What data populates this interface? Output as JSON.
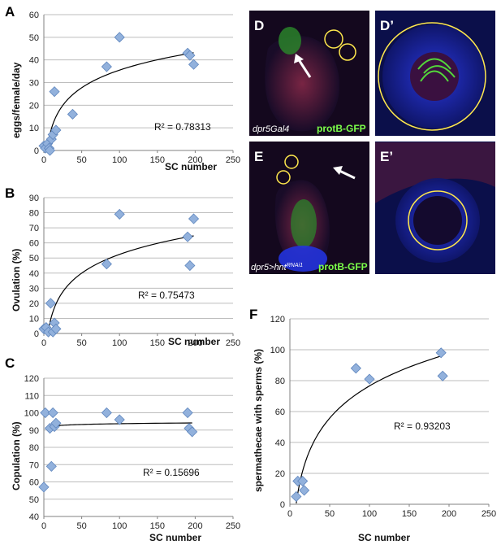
{
  "chart_data": [
    {
      "panel": "A",
      "type": "scatter",
      "xlabel": "SC number",
      "ylabel": "eggs/female/day",
      "xlim": [
        0,
        250
      ],
      "ylim": [
        0,
        60
      ],
      "xticks": [
        0,
        50,
        100,
        150,
        200,
        250
      ],
      "yticks": [
        0,
        10,
        20,
        30,
        40,
        50,
        60
      ],
      "points": [
        [
          0,
          2
        ],
        [
          2,
          1
        ],
        [
          5,
          3
        ],
        [
          7,
          1
        ],
        [
          8,
          0
        ],
        [
          10,
          5
        ],
        [
          12,
          7
        ],
        [
          14,
          26
        ],
        [
          16,
          9
        ],
        [
          38,
          16
        ],
        [
          83,
          37
        ],
        [
          100,
          50
        ],
        [
          190,
          43
        ],
        [
          193,
          42
        ],
        [
          198,
          38
        ]
      ],
      "trendline": "log",
      "r2": "R² = 0.78313"
    },
    {
      "panel": "B",
      "type": "scatter",
      "xlabel": "SC number",
      "ylabel": "Ovulation (%)",
      "xlim": [
        0,
        250
      ],
      "ylim": [
        0,
        90
      ],
      "xticks": [
        0,
        50,
        100,
        150,
        200,
        250
      ],
      "yticks": [
        0,
        10,
        20,
        30,
        40,
        50,
        60,
        70,
        80,
        90
      ],
      "points": [
        [
          0,
          3
        ],
        [
          3,
          4
        ],
        [
          6,
          1
        ],
        [
          9,
          20
        ],
        [
          12,
          1
        ],
        [
          14,
          7
        ],
        [
          16,
          3
        ],
        [
          83,
          46
        ],
        [
          100,
          79
        ],
        [
          190,
          64
        ],
        [
          193,
          45
        ],
        [
          198,
          76
        ]
      ],
      "trendline": "log",
      "r2": "R² = 0.75473"
    },
    {
      "panel": "C",
      "type": "scatter",
      "xlabel": "SC number",
      "ylabel": "Copulation (%)",
      "xlim": [
        0,
        250
      ],
      "ylim": [
        40,
        120
      ],
      "xticks": [
        0,
        50,
        100,
        150,
        200,
        250
      ],
      "yticks": [
        40,
        50,
        60,
        70,
        80,
        90,
        100,
        110,
        120
      ],
      "points": [
        [
          0,
          57
        ],
        [
          2,
          100
        ],
        [
          8,
          91
        ],
        [
          10,
          69
        ],
        [
          12,
          100
        ],
        [
          14,
          92
        ],
        [
          16,
          94
        ],
        [
          83,
          100
        ],
        [
          100,
          96
        ],
        [
          190,
          100
        ],
        [
          192,
          91
        ],
        [
          196,
          89
        ]
      ],
      "trendline": "log",
      "r2": "R² = 0.15696"
    },
    {
      "panel": "F",
      "type": "scatter",
      "xlabel": "SC number",
      "ylabel": "spermathecae with sperms (%)",
      "xlim": [
        0,
        250
      ],
      "ylim": [
        0,
        120
      ],
      "xticks": [
        0,
        50,
        100,
        150,
        200,
        250
      ],
      "yticks": [
        0,
        20,
        40,
        60,
        80,
        100,
        120
      ],
      "points": [
        [
          8,
          5
        ],
        [
          10,
          15
        ],
        [
          16,
          15
        ],
        [
          18,
          9
        ],
        [
          83,
          88
        ],
        [
          100,
          81
        ],
        [
          190,
          98
        ],
        [
          192,
          83
        ]
      ],
      "trendline": "log",
      "r2": "R² = 0.93203"
    }
  ],
  "micrographs": [
    {
      "label": "D",
      "caption": "dpr5Gal4",
      "gfp": "protB-GFP"
    },
    {
      "label": "D’"
    },
    {
      "label": "E",
      "caption": "dpr5>hnt",
      "caption_sup": "RNAi1",
      "gfp": "protB-GFP"
    },
    {
      "label": "E’"
    }
  ],
  "colors": {
    "marker": "#92b1dc",
    "marker_edge": "#5e85bd",
    "trend": "#000000",
    "grid": "#bdbdbd",
    "circle": "#ffe84d",
    "nuclei": "#1a2fe0",
    "gfp": "#53d63a",
    "background_stain": "#7a1f3a"
  }
}
